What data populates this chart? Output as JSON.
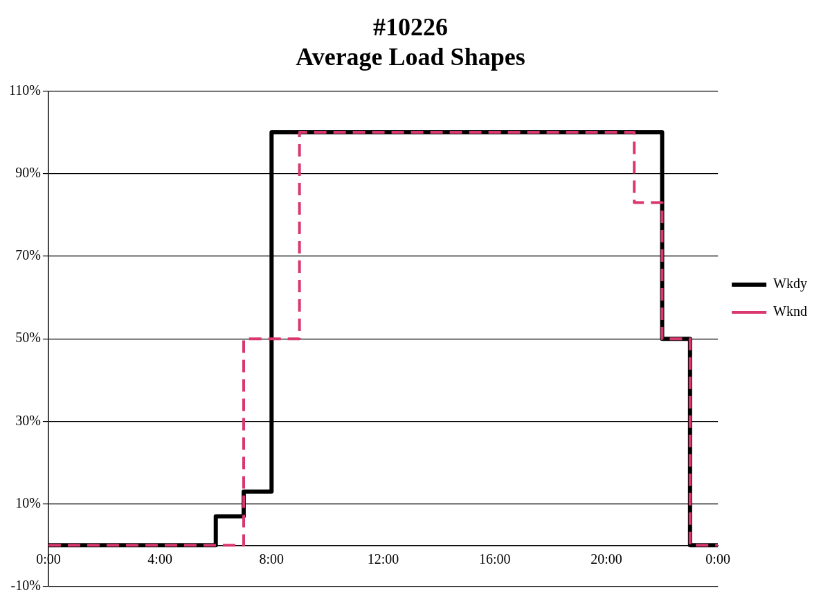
{
  "chart_data": {
    "type": "step",
    "title": "#10226\nAverage Load Shapes",
    "series": [
      {
        "name": "Wkdy",
        "color": "#000000",
        "line_style": "solid",
        "x": [
          0,
          1,
          2,
          3,
          4,
          5,
          6,
          7,
          8,
          9,
          10,
          11,
          12,
          13,
          14,
          15,
          16,
          17,
          18,
          19,
          20,
          21,
          22,
          23,
          24
        ],
        "values": [
          0,
          0,
          0,
          0,
          0,
          0,
          7,
          13,
          100,
          100,
          100,
          100,
          100,
          100,
          100,
          100,
          100,
          100,
          100,
          100,
          100,
          100,
          50,
          0,
          0
        ]
      },
      {
        "name": "Wknd",
        "color": "#d9376e",
        "line_style": "dashed",
        "x": [
          0,
          1,
          2,
          3,
          4,
          5,
          6,
          7,
          8,
          9,
          10,
          11,
          12,
          13,
          14,
          15,
          16,
          17,
          18,
          19,
          20,
          21,
          22,
          23,
          24
        ],
        "values": [
          0,
          0,
          0,
          0,
          0,
          0,
          0,
          50,
          50,
          100,
          100,
          100,
          100,
          100,
          100,
          100,
          100,
          100,
          100,
          100,
          100,
          83,
          50,
          0,
          0
        ]
      }
    ],
    "xlim": [
      0,
      24
    ],
    "xticks": [
      {
        "value": 0,
        "label": "0:00"
      },
      {
        "value": 4,
        "label": "4:00"
      },
      {
        "value": 8,
        "label": "8:00"
      },
      {
        "value": 12,
        "label": "12:00"
      },
      {
        "value": 16,
        "label": "16:00"
      },
      {
        "value": 20,
        "label": "20:00"
      },
      {
        "value": 24,
        "label": "0:00"
      }
    ],
    "ylim": [
      -10,
      110
    ],
    "yticks": [
      {
        "value": -10,
        "label": "-10%"
      },
      {
        "value": 10,
        "label": "10%"
      },
      {
        "value": 30,
        "label": "30%"
      },
      {
        "value": 50,
        "label": "50%"
      },
      {
        "value": 70,
        "label": "70%"
      },
      {
        "value": 90,
        "label": "90%"
      },
      {
        "value": 110,
        "label": "110%"
      }
    ],
    "grid": "y",
    "legend": "right",
    "marker": "none"
  }
}
